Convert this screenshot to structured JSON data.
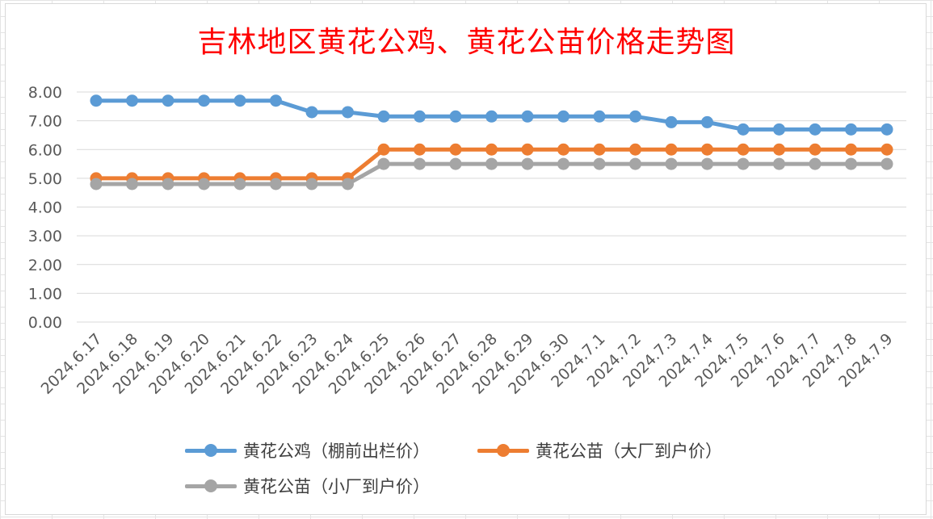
{
  "chart_data": {
    "type": "line",
    "title": "吉林地区黄花公鸡、黄花公苗价格走势图",
    "categories": [
      "2024.6.17",
      "2024.6.18",
      "2024.6.19",
      "2024.6.20",
      "2024.6.21",
      "2024.6.22",
      "2024.6.23",
      "2024.6.24",
      "2024.6.25",
      "2024.6.26",
      "2024.6.27",
      "2024.6.28",
      "2024.6.29",
      "2024.6.30",
      "2024.7.1",
      "2024.7.2",
      "2024.7.3",
      "2024.7.4",
      "2024.7.5",
      "2024.7.6",
      "2024.7.7",
      "2024.7.8",
      "2024.7.9"
    ],
    "y_ticks": [
      "0.00",
      "1.00",
      "2.00",
      "3.00",
      "4.00",
      "5.00",
      "6.00",
      "7.00",
      "8.00"
    ],
    "ylim": [
      0,
      8
    ],
    "grid": true,
    "legend_position": "bottom",
    "series": [
      {
        "name": "黄花公鸡（棚前出栏价）",
        "color": "#5b9bd5",
        "values": [
          7.7,
          7.7,
          7.7,
          7.7,
          7.7,
          7.7,
          7.3,
          7.3,
          7.15,
          7.15,
          7.15,
          7.15,
          7.15,
          7.15,
          7.15,
          7.15,
          6.95,
          6.95,
          6.7,
          6.7,
          6.7,
          6.7,
          6.7
        ]
      },
      {
        "name": "黄花公苗（大厂到户价）",
        "color": "#ed7d31",
        "values": [
          5.0,
          5.0,
          5.0,
          5.0,
          5.0,
          5.0,
          5.0,
          5.0,
          6.0,
          6.0,
          6.0,
          6.0,
          6.0,
          6.0,
          6.0,
          6.0,
          6.0,
          6.0,
          6.0,
          6.0,
          6.0,
          6.0,
          6.0
        ]
      },
      {
        "name": "黄花公苗（小厂到户价）",
        "color": "#a5a5a5",
        "values": [
          4.8,
          4.8,
          4.8,
          4.8,
          4.8,
          4.8,
          4.8,
          4.8,
          5.5,
          5.5,
          5.5,
          5.5,
          5.5,
          5.5,
          5.5,
          5.5,
          5.5,
          5.5,
          5.5,
          5.5,
          5.5,
          5.5,
          5.5
        ]
      }
    ]
  }
}
